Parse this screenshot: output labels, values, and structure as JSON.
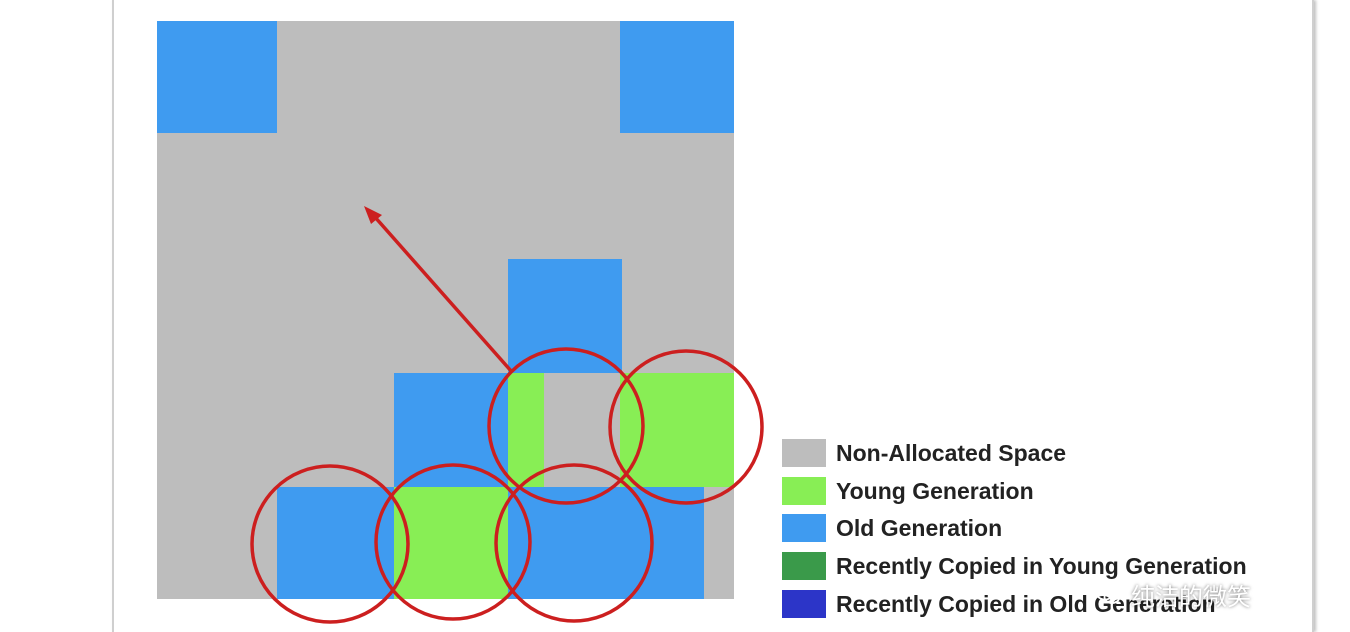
{
  "colors": {
    "non_allocated": "#bdbdbd",
    "young": "#88ee55",
    "old": "#3f9bf0",
    "recent_young": "#3a9a4a",
    "recent_old": "#2c35c8",
    "highlight": "#cc1f1f"
  },
  "legend": [
    {
      "label": "Non-Allocated Space",
      "color": "#bdbdbd"
    },
    {
      "label": "Young Generation",
      "color": "#88ee55"
    },
    {
      "label": "Old Generation",
      "color": "#3f9bf0"
    },
    {
      "label": "Recently Copied in Young Generation",
      "color": "#3a9a4a"
    },
    {
      "label": "Recently Copied in Old Generation",
      "color": "#2c35c8"
    }
  ],
  "watermark": {
    "text": "纯洁的微笑",
    "icon": "wechat-icon"
  }
}
